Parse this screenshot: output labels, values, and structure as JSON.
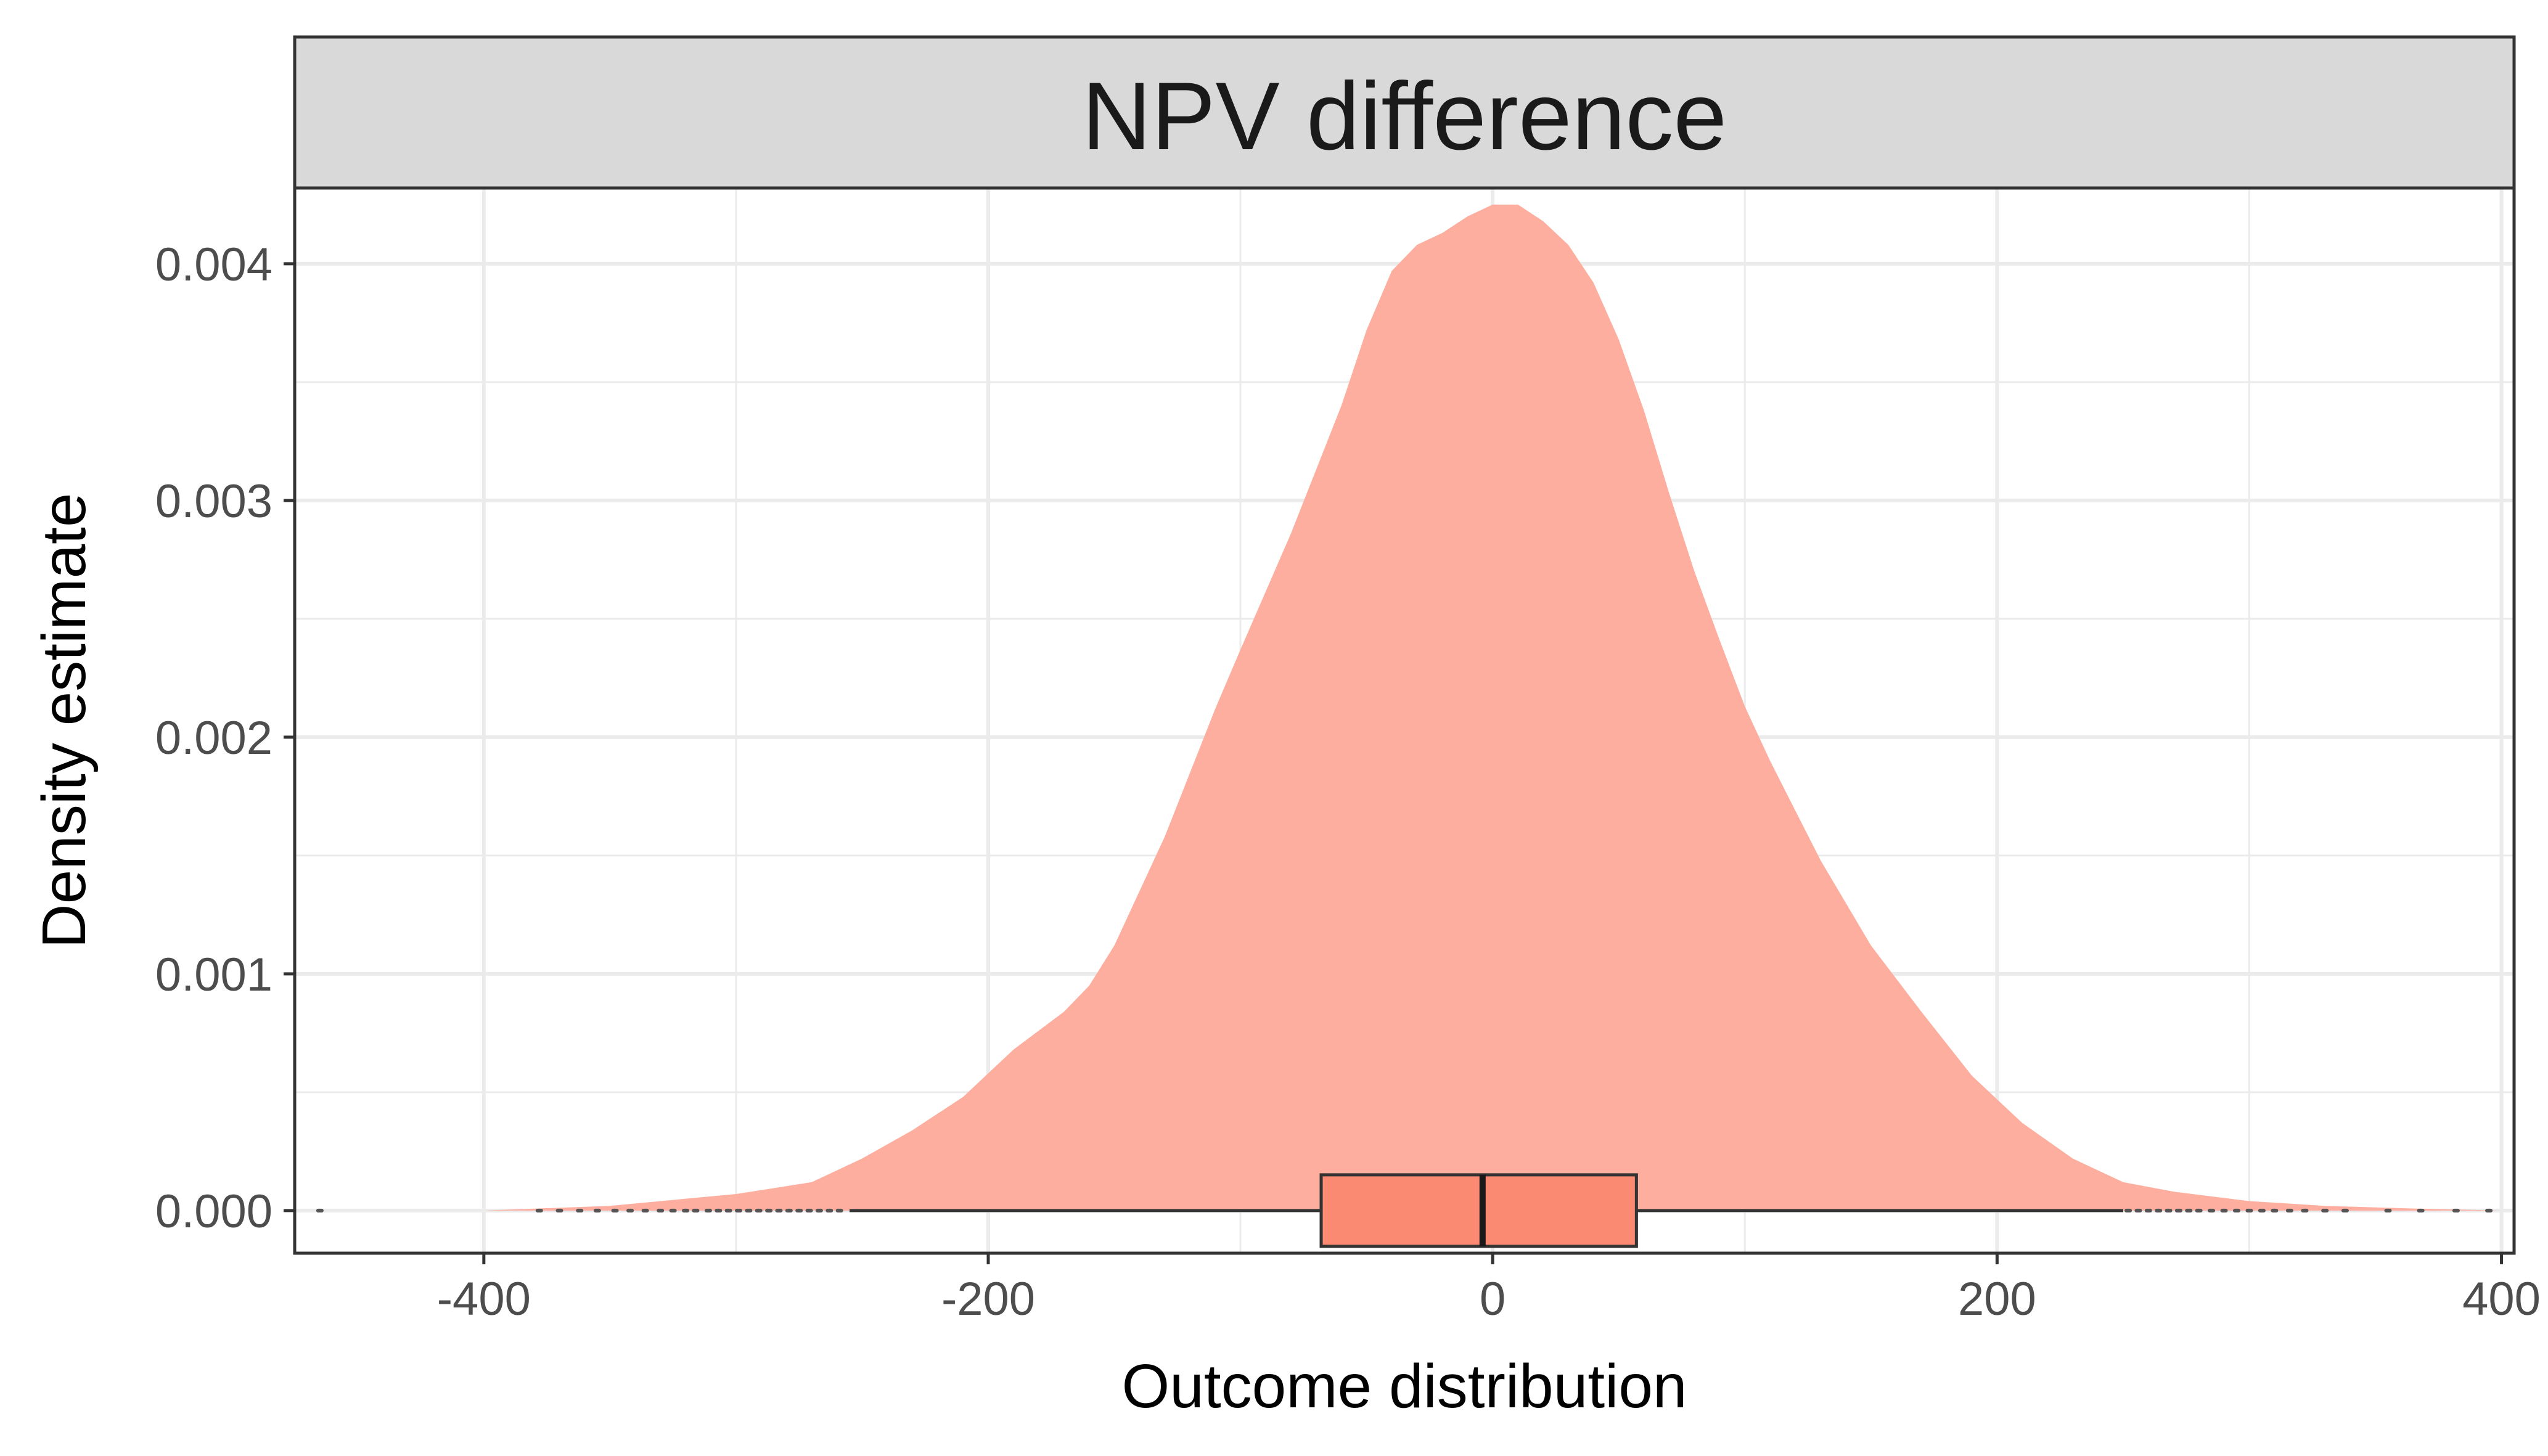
{
  "chart_data": {
    "type": "area",
    "title": "NPV difference",
    "xlabel": "Outcome distribution",
    "ylabel": "Density estimate",
    "xlim": [
      -475,
      405
    ],
    "ylim": [
      -0.00018,
      0.00432
    ],
    "x_ticks": [
      -400,
      -200,
      0,
      200,
      400
    ],
    "x_tick_labels": [
      "-400",
      "-200",
      "0",
      "200",
      "400"
    ],
    "y_ticks": [
      0.0,
      0.001,
      0.002,
      0.003,
      0.004
    ],
    "y_tick_labels": [
      "0.000",
      "0.001",
      "0.002",
      "0.003",
      "0.004"
    ],
    "grid": true,
    "fill_color": "#fdae9f",
    "box_fill_color": "#fb8a72",
    "density": {
      "x": [
        -400,
        -350,
        -300,
        -270,
        -250,
        -230,
        -210,
        -190,
        -170,
        -160,
        -150,
        -130,
        -110,
        -100,
        -80,
        -60,
        -50,
        -40,
        -30,
        -20,
        -10,
        0,
        10,
        20,
        30,
        40,
        50,
        60,
        70,
        80,
        90,
        100,
        110,
        130,
        150,
        170,
        190,
        210,
        230,
        250,
        270,
        300,
        330,
        360,
        400
      ],
      "y": [
        0.0,
        2e-05,
        7e-05,
        0.00012,
        0.00022,
        0.00034,
        0.00048,
        0.00068,
        0.00084,
        0.00095,
        0.00112,
        0.00158,
        0.00212,
        0.00237,
        0.00286,
        0.0034,
        0.00372,
        0.00397,
        0.00408,
        0.00413,
        0.0042,
        0.00425,
        0.00425,
        0.00418,
        0.00408,
        0.00392,
        0.00368,
        0.00338,
        0.00303,
        0.0027,
        0.00241,
        0.00213,
        0.0019,
        0.00148,
        0.00112,
        0.00084,
        0.00057,
        0.00037,
        0.00022,
        0.00012,
        8e-05,
        4e-05,
        2e-05,
        1e-05,
        0.0
      ]
    },
    "boxplot": {
      "min": -255,
      "q1": -68,
      "median": -4,
      "q3": 57,
      "max": 250
    },
    "outliers": [
      -465,
      -378,
      -370,
      -362,
      -355,
      -348,
      -342,
      -336,
      -330,
      -325,
      -320,
      -316,
      -311,
      -307,
      -303,
      -299,
      -295,
      -291,
      -287,
      -283,
      -279,
      -275,
      -271,
      -267,
      -263,
      -259,
      252,
      256,
      260,
      264,
      268,
      272,
      276,
      280,
      285,
      290,
      295,
      300,
      305,
      310,
      316,
      322,
      330,
      338,
      355,
      368,
      382,
      395
    ]
  }
}
